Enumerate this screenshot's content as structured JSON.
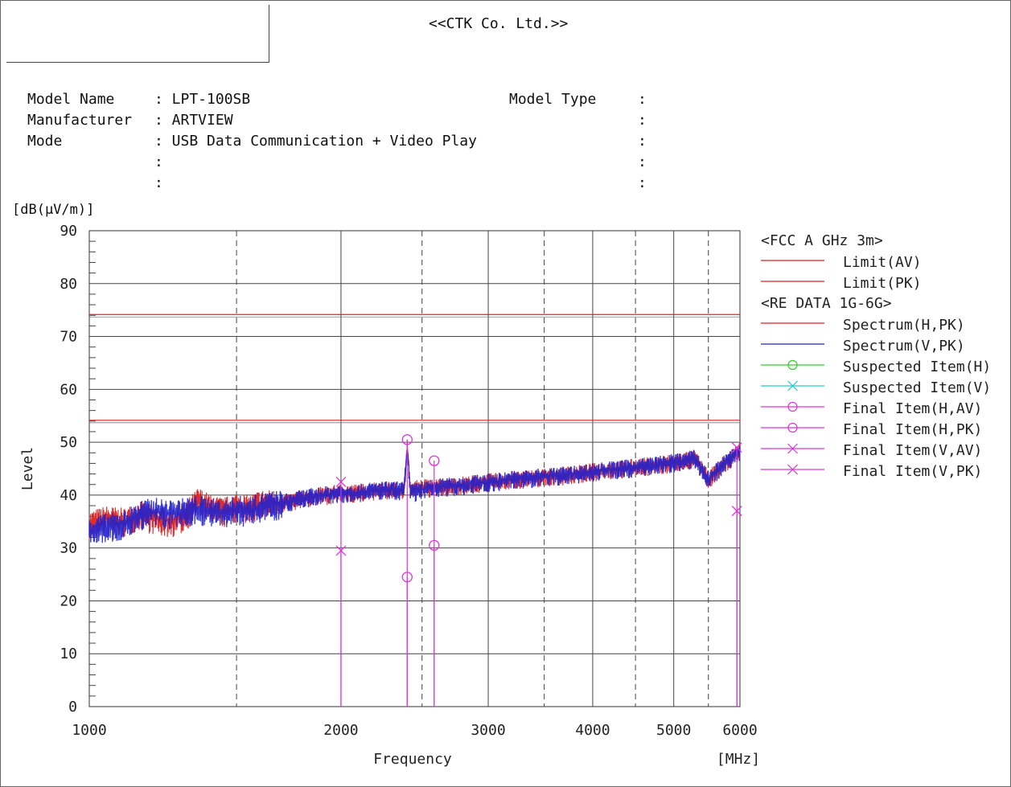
{
  "header": {
    "company": "<<CTK Co. Ltd.>>"
  },
  "info": {
    "model_name_label": "Model Name",
    "model_name_value": ": LPT-100SB",
    "manufacturer_label": "Manufacturer",
    "manufacturer_value": ": ARTVIEW",
    "mode_label": "Mode",
    "mode_value": ": USB Data Communication + Video Play",
    "blank_row_1": ":",
    "blank_row_2": ":",
    "model_type_label": "Model Type",
    "right_col_colons": [
      ":",
      ":",
      ":",
      ":",
      ":"
    ]
  },
  "chart_data": {
    "type": "line",
    "title": "",
    "ylabel_units": "[dB(µV/m)]",
    "ylabel": "Level",
    "xlabel": "Frequency",
    "xunits": "[MHz]",
    "x_scale": "log",
    "xlim": [
      1000,
      6000
    ],
    "ylim": [
      0,
      90
    ],
    "x_ticks": [
      1000,
      2000,
      3000,
      4000,
      5000,
      6000
    ],
    "x_tick_labels": [
      "1000",
      "2000",
      "3000",
      "4000",
      "5000",
      "6000"
    ],
    "x_dashed_gridlines": [
      1500,
      2500,
      3500,
      4500,
      5500
    ],
    "x_solid_gridlines": [
      2000,
      3000,
      4000,
      5000
    ],
    "y_ticks": [
      0,
      10,
      20,
      30,
      40,
      50,
      60,
      70,
      80,
      90
    ],
    "grid": true,
    "legend_placement": "right",
    "legend": {
      "group1_title": "<FCC A GHz 3m>",
      "group2_title": "<RE DATA 1G-6G>",
      "items": [
        {
          "label": "Limit(AV)",
          "color": "#dd2222",
          "marker": "line"
        },
        {
          "label": "Limit(PK)",
          "color": "#dd2222",
          "marker": "line"
        },
        {
          "label": "Spectrum(H,PK)",
          "color": "#dd2222",
          "marker": "line"
        },
        {
          "label": "Spectrum(V,PK)",
          "color": "#2222cc",
          "marker": "line"
        },
        {
          "label": "Suspected Item(H)",
          "color": "#33cc33",
          "marker": "circle"
        },
        {
          "label": "Suspected Item(V)",
          "color": "#22cccc",
          "marker": "cross"
        },
        {
          "label": "Final Item(H,AV)",
          "color": "#dd33dd",
          "marker": "circle"
        },
        {
          "label": "Final Item(H,PK)",
          "color": "#dd33dd",
          "marker": "circle"
        },
        {
          "label": "Final Item(V,AV)",
          "color": "#dd33dd",
          "marker": "cross"
        },
        {
          "label": "Final Item(V,PK)",
          "color": "#dd33dd",
          "marker": "cross"
        }
      ]
    },
    "limits": [
      {
        "name": "Limit(AV)",
        "x": [
          1000,
          6000
        ],
        "y": [
          54,
          54
        ],
        "color": "#dd2222"
      },
      {
        "name": "Limit(PK)",
        "x": [
          1000,
          6000
        ],
        "y": [
          74,
          74
        ],
        "color": "#dd2222"
      }
    ],
    "series": [
      {
        "name": "Spectrum(H,PK)",
        "color": "#dd2222",
        "x": [
          1000,
          1050,
          1100,
          1150,
          1200,
          1250,
          1300,
          1350,
          1400,
          1450,
          1500,
          1550,
          1600,
          1700,
          1800,
          1900,
          2000,
          2100,
          2200,
          2300,
          2380,
          2400,
          2420,
          2500,
          2600,
          2800,
          3000,
          3200,
          3500,
          3800,
          4000,
          4300,
          4600,
          4900,
          5100,
          5300,
          5500,
          5700,
          5900,
          6000
        ],
        "y": [
          34.5,
          35.5,
          35,
          36.5,
          35.5,
          35,
          36,
          39,
          37.5,
          37,
          38,
          37.5,
          38.5,
          38.5,
          39.5,
          40,
          40.5,
          40.5,
          41,
          41,
          41,
          50,
          41,
          41.5,
          41.5,
          42,
          42.5,
          43,
          43.5,
          44,
          44.5,
          45,
          45.5,
          46,
          46.5,
          47,
          43,
          45.5,
          47.5,
          48.5
        ]
      },
      {
        "name": "Spectrum(V,PK)",
        "color": "#2222cc",
        "x": [
          1000,
          1050,
          1100,
          1150,
          1200,
          1250,
          1300,
          1350,
          1400,
          1450,
          1500,
          1550,
          1600,
          1700,
          1800,
          1900,
          2000,
          2100,
          2200,
          2300,
          2380,
          2400,
          2420,
          2500,
          2600,
          2800,
          3000,
          3200,
          3500,
          3800,
          4000,
          4300,
          4600,
          4900,
          5100,
          5300,
          5500,
          5700,
          5900,
          6000
        ],
        "y": [
          33.5,
          34,
          34.5,
          36.5,
          37,
          36.5,
          37,
          37.5,
          37,
          36.5,
          37.5,
          37,
          38,
          38.5,
          39.5,
          40,
          40.5,
          40.5,
          41,
          41,
          41,
          49,
          40.5,
          41,
          41.5,
          42,
          42.5,
          43,
          43.5,
          44,
          44.5,
          45,
          45.5,
          46,
          46.5,
          47,
          43,
          45.5,
          47.5,
          48.5
        ]
      }
    ],
    "final_items": [
      {
        "freq": 2000,
        "level": 42.5,
        "marker": "cross",
        "series": "Final Item(V,PK)"
      },
      {
        "freq": 2000,
        "level": 29.5,
        "marker": "cross",
        "series": "Final Item(V,AV)"
      },
      {
        "freq": 2400,
        "level": 50.5,
        "marker": "circle",
        "series": "Final Item(H,PK)"
      },
      {
        "freq": 2400,
        "level": 24.5,
        "marker": "circle",
        "series": "Final Item(H,AV)"
      },
      {
        "freq": 2585,
        "level": 46.5,
        "marker": "circle",
        "series": "Final Item(H,PK)"
      },
      {
        "freq": 2585,
        "level": 30.5,
        "marker": "circle",
        "series": "Final Item(H,AV)"
      },
      {
        "freq": 5950,
        "level": 49,
        "marker": "cross",
        "series": "Final Item(V,PK)"
      },
      {
        "freq": 5950,
        "level": 37,
        "marker": "cross",
        "series": "Final Item(V,AV)"
      }
    ]
  }
}
